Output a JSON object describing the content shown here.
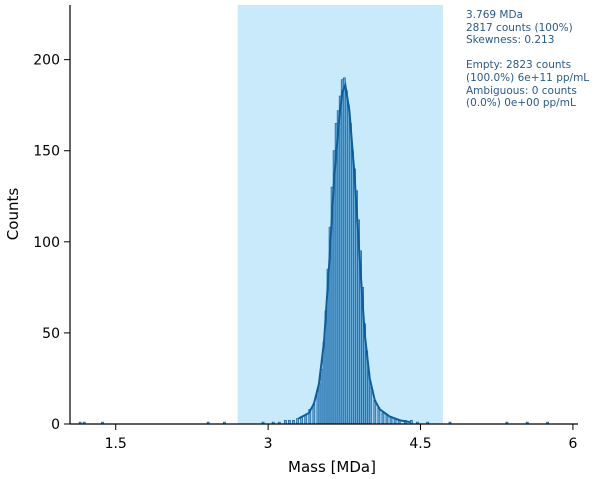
{
  "chart_data": {
    "type": "bar",
    "title": "",
    "xlabel": "Mass [MDa]",
    "ylabel": "Counts",
    "xlim": [
      1.05,
      6.05
    ],
    "ylim": [
      0,
      230
    ],
    "xticks": [
      1.5,
      3,
      4.5,
      6
    ],
    "xtick_labels": [
      "1.5",
      "3",
      "4.5",
      "6"
    ],
    "yticks": [
      0,
      50,
      100,
      150,
      200
    ],
    "ytick_labels": [
      "0",
      "50",
      "100",
      "150",
      "200"
    ],
    "grid": false,
    "selection_range": [
      2.7,
      4.72
    ],
    "bin_width": 0.02,
    "histogram": {
      "x": [
        1.15,
        1.19,
        1.37,
        2.41,
        2.57,
        2.95,
        3.05,
        3.11,
        3.17,
        3.21,
        3.25,
        3.29,
        3.33,
        3.37,
        3.41,
        3.45,
        3.49,
        3.51,
        3.53,
        3.55,
        3.57,
        3.59,
        3.61,
        3.63,
        3.65,
        3.67,
        3.69,
        3.71,
        3.73,
        3.75,
        3.77,
        3.79,
        3.81,
        3.83,
        3.85,
        3.87,
        3.89,
        3.91,
        3.93,
        3.95,
        3.97,
        3.99,
        4.01,
        4.05,
        4.09,
        4.13,
        4.17,
        4.21,
        4.25,
        4.29,
        4.35,
        4.41,
        4.47,
        4.57,
        4.79,
        5.35,
        5.55,
        5.75
      ],
      "values": [
        1,
        1,
        1,
        1,
        1,
        1,
        1,
        1,
        2,
        2,
        2,
        3,
        4,
        5,
        8,
        11,
        18,
        22,
        30,
        45,
        62,
        85,
        108,
        130,
        150,
        165,
        172,
        180,
        189,
        190,
        183,
        175,
        165,
        150,
        140,
        128,
        112,
        95,
        75,
        55,
        40,
        28,
        20,
        13,
        9,
        6,
        5,
        4,
        3,
        2,
        2,
        2,
        1,
        1,
        1,
        1,
        1,
        1
      ]
    },
    "fit_curve": {
      "x": [
        3.3,
        3.4,
        3.45,
        3.5,
        3.55,
        3.6,
        3.65,
        3.7,
        3.73,
        3.76,
        3.8,
        3.85,
        3.9,
        3.95,
        4.0,
        4.05,
        4.1,
        4.2,
        4.3,
        4.4
      ],
      "y": [
        3,
        6,
        11,
        22,
        45,
        87,
        135,
        168,
        182,
        186,
        172,
        137,
        92,
        50,
        25,
        13,
        8,
        4,
        2,
        1
      ]
    }
  },
  "stats": {
    "peak_mass": "3.769 MDa",
    "peak_counts": "2817 counts (100%)",
    "skewness": "Skewness: 0.213",
    "empty_counts": "Empty: 2823 counts",
    "empty_conc": "(100.0%) 6e+11 pp/mL",
    "ambiguous_counts": "Ambiguous: 0 counts",
    "ambiguous_conc": "(0.0%) 0e+00 pp/mL"
  },
  "colors": {
    "selection": "#c9eafb",
    "bar_fill": "#6badd8",
    "bar_edge": "#1e6aa8",
    "fit_line": "#0f5e9c",
    "stats_text": "#2a5a88"
  }
}
